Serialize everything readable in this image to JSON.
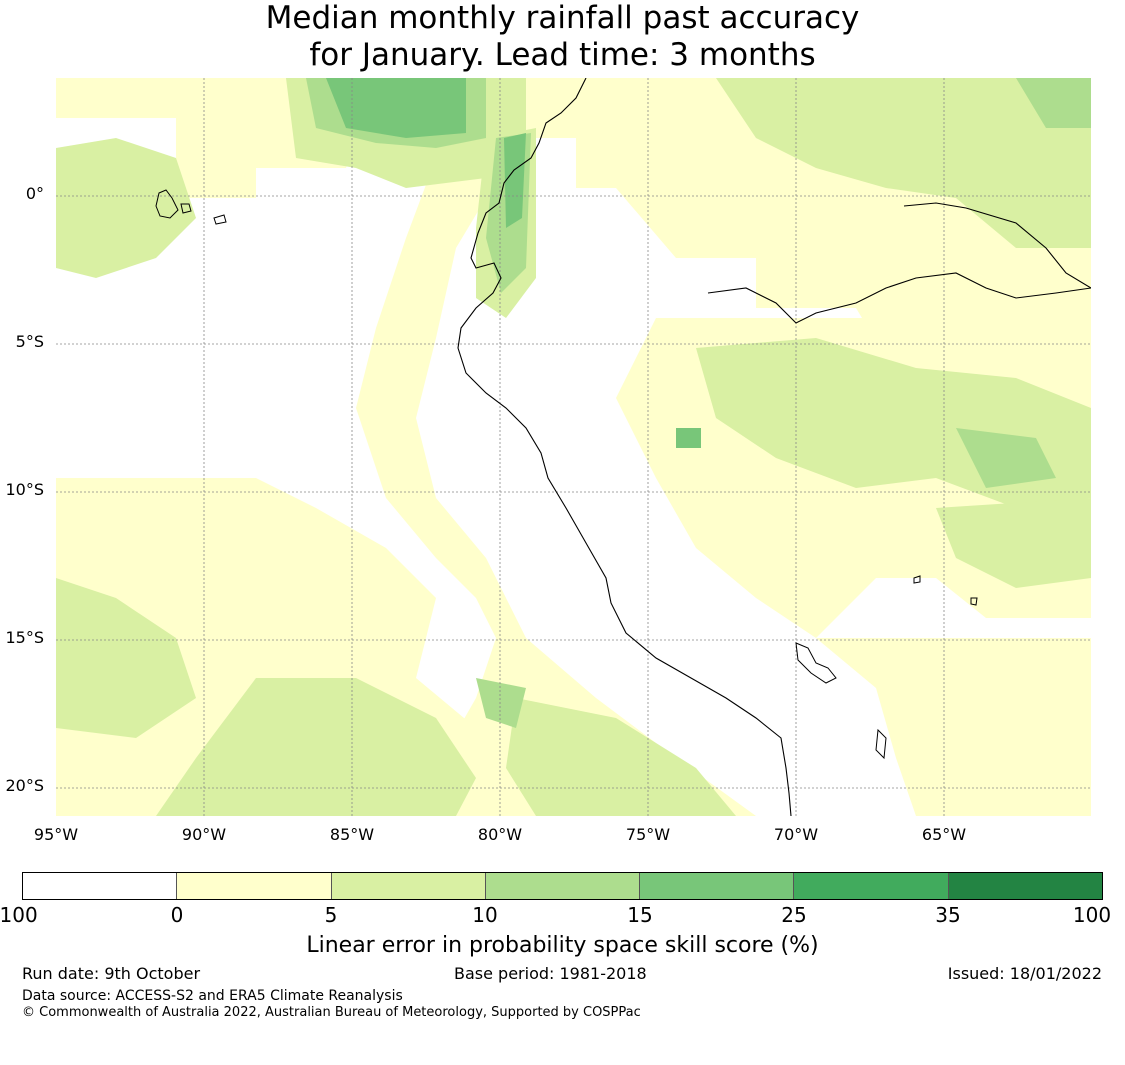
{
  "title": {
    "line1": "Median monthly rainfall past accuracy",
    "line2": "for January. Lead time: 3 months"
  },
  "map": {
    "lat_labels": [
      "0°",
      "5°S",
      "10°S",
      "15°S",
      "20°S"
    ],
    "lon_labels": [
      "95°W",
      "90°W",
      "85°W",
      "80°W",
      "75°W",
      "70°W",
      "65°W"
    ],
    "extent": {
      "lon_min": -95,
      "lon_max": -60,
      "lat_min": -21,
      "lat_max": 4
    }
  },
  "colorbar": {
    "ticks": [
      "-100",
      "0",
      "5",
      "10",
      "15",
      "25",
      "35",
      "100"
    ],
    "colors": [
      "#ffffff",
      "#ffffcc",
      "#d9f0a3",
      "#addd8e",
      "#78c679",
      "#41ab5d",
      "#238443"
    ],
    "label": "Linear error in probability space skill score (%)"
  },
  "footer": {
    "run_date": "Run date: 9th October",
    "base_period": "Base period: 1981-2018",
    "issued": "Issued: 18/01/2022",
    "data_source": "Data source: ACCESS-S2 and ERA5 Climate Reanalysis",
    "copyright": "© Commonwealth of Australia 2022, Australian Bureau of Meteorology, Supported by COSPPac"
  }
}
